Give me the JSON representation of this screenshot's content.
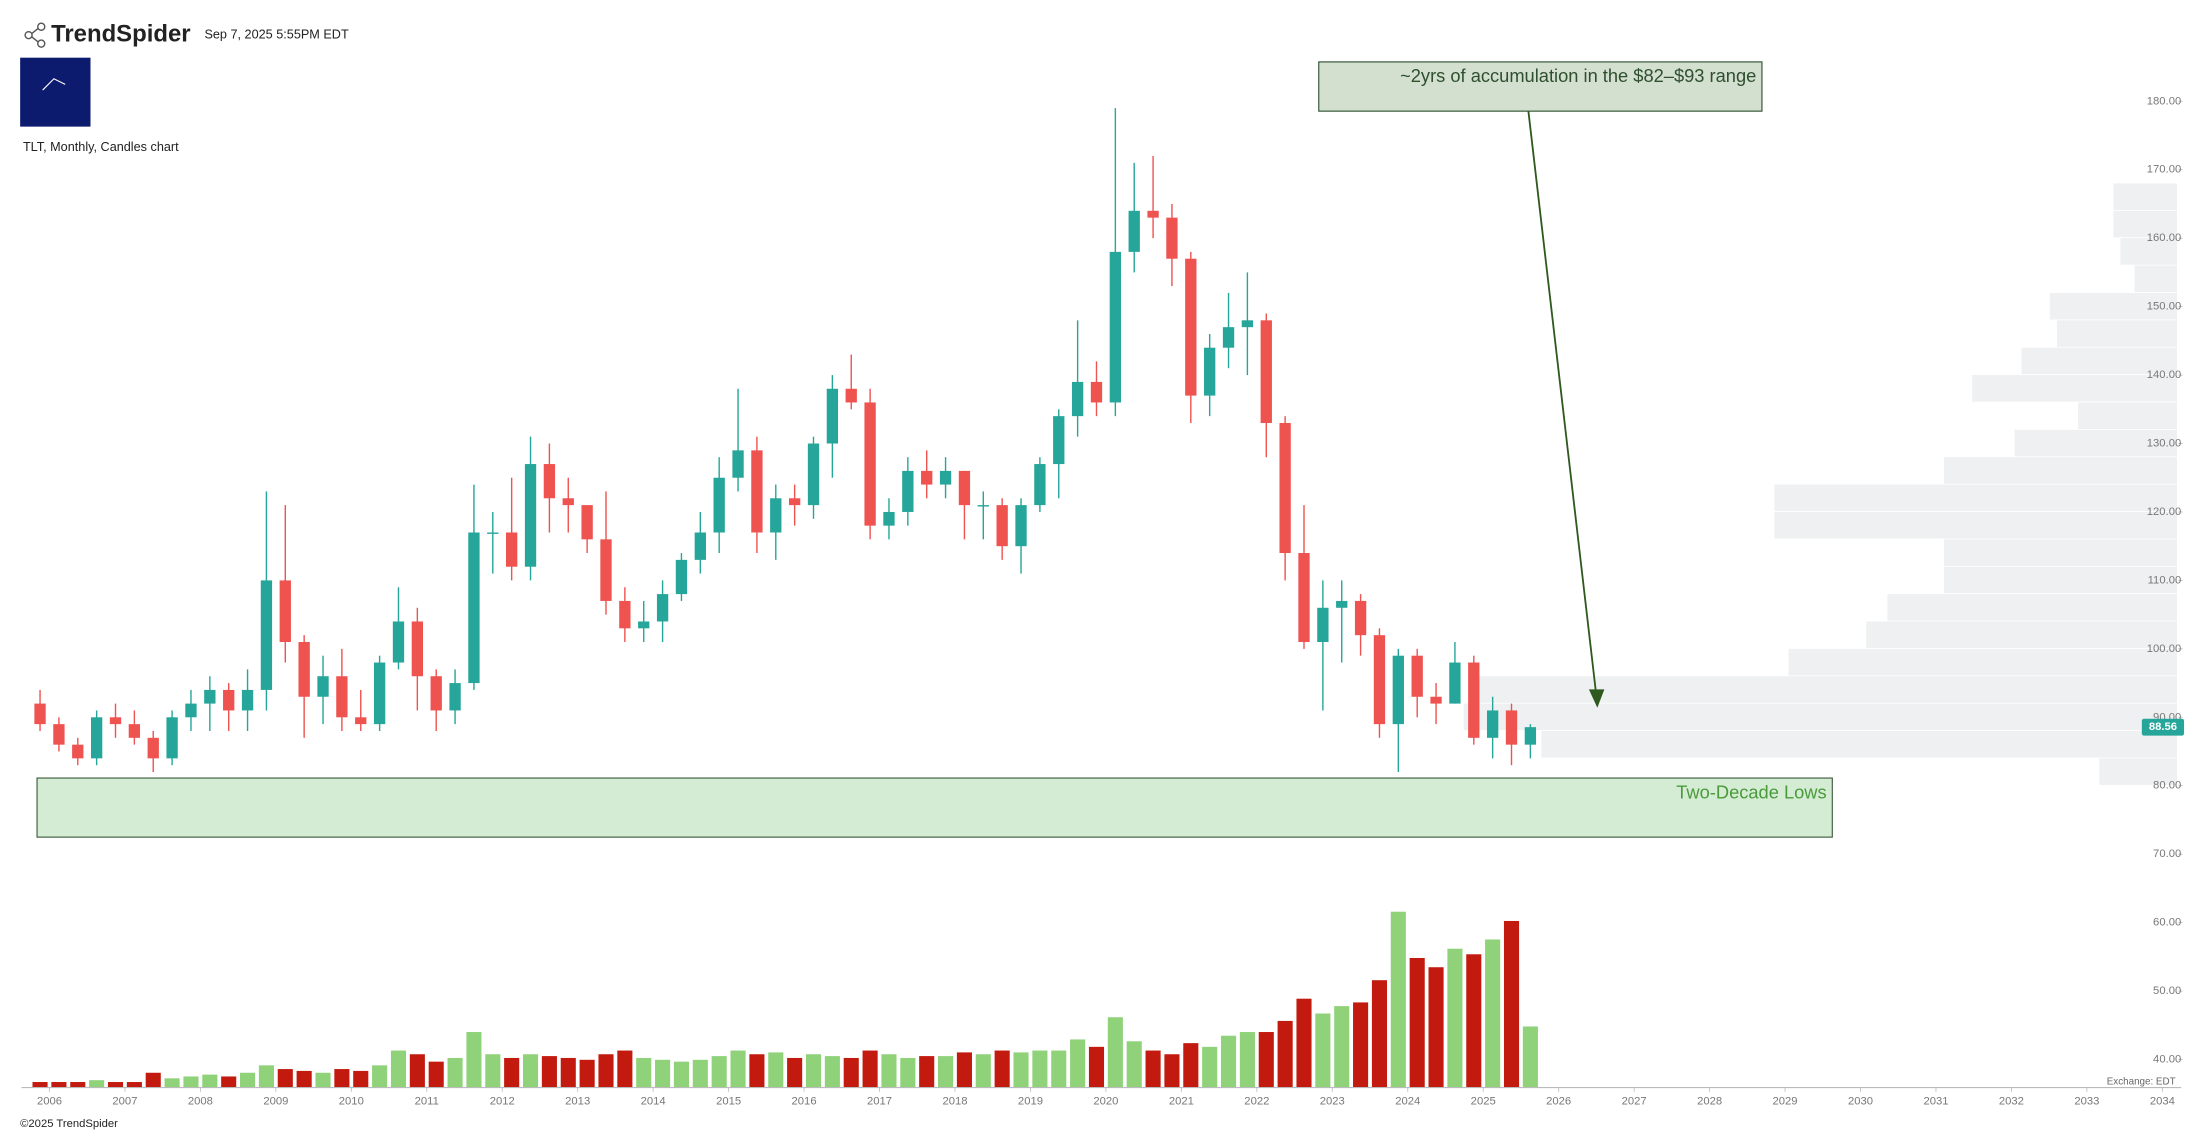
{
  "header": {
    "brand": "TrendSpider",
    "timestamp": "Sep 7, 2025 5:55PM EDT",
    "chart_label": "TLT, Monthly, Candles chart"
  },
  "footer": {
    "copyright": "©2025 TrendSpider",
    "exchange": "Exchange: EDT"
  },
  "chart_data": {
    "type": "candlestick",
    "up_color": "#26a69a",
    "down_color": "#ef5350",
    "volume_up_color": "#8fd27a",
    "volume_down_color": "#c21a0e",
    "x": [
      2005.75,
      2006,
      2006.25,
      2006.5,
      2006.75,
      2007,
      2007.25,
      2007.5,
      2007.75,
      2008,
      2008.25,
      2008.5,
      2008.75,
      2009,
      2009.25,
      2009.5,
      2009.75,
      2010,
      2010.25,
      2010.5,
      2010.75,
      2011,
      2011.25,
      2011.5,
      2011.75,
      2012,
      2012.25,
      2012.5,
      2012.75,
      2013,
      2013.25,
      2013.5,
      2013.75,
      2014,
      2014.25,
      2014.5,
      2014.75,
      2015,
      2015.25,
      2015.5,
      2015.75,
      2016,
      2016.25,
      2016.5,
      2016.75,
      2017,
      2017.25,
      2017.5,
      2017.75,
      2018,
      2018.25,
      2018.5,
      2018.75,
      2019,
      2019.25,
      2019.5,
      2019.75,
      2020,
      2020.25,
      2020.5,
      2020.75,
      2021,
      2021.25,
      2021.5,
      2021.75,
      2022,
      2022.25,
      2022.5,
      2022.75,
      2023,
      2023.25,
      2023.5,
      2023.75,
      2024,
      2024.25,
      2024.5,
      2024.75,
      2025,
      2025.25,
      2025.5
    ],
    "open": [
      92,
      89,
      86,
      84,
      90,
      89,
      87,
      84,
      90,
      92,
      94,
      91,
      94,
      110,
      101,
      93,
      96,
      90,
      89,
      98,
      104,
      96,
      91,
      95,
      117,
      117,
      112,
      127,
      122,
      121,
      116,
      107,
      103,
      104,
      108,
      113,
      117,
      125,
      129,
      117,
      122,
      121,
      130,
      138,
      136,
      118,
      120,
      126,
      124,
      126,
      121,
      121,
      115,
      121,
      127,
      134,
      139,
      136,
      158,
      164,
      163,
      157,
      137,
      144,
      147,
      148,
      133,
      114,
      101,
      106,
      107,
      102,
      89,
      99,
      93,
      92,
      98,
      87,
      91,
      86
    ],
    "high": [
      94,
      90,
      87,
      91,
      92,
      91,
      88,
      91,
      94,
      96,
      95,
      97,
      123,
      121,
      102,
      99,
      100,
      94,
      99,
      109,
      106,
      97,
      97,
      124,
      120,
      125,
      131,
      130,
      125,
      121,
      123,
      109,
      107,
      110,
      114,
      120,
      128,
      138,
      131,
      124,
      124,
      131,
      140,
      143,
      138,
      122,
      128,
      129,
      128,
      126,
      123,
      122,
      122,
      128,
      135,
      148,
      142,
      179,
      171,
      172,
      165,
      158,
      146,
      152,
      155,
      149,
      134,
      121,
      110,
      110,
      108,
      103,
      100,
      100,
      95,
      101,
      99,
      93,
      92,
      89
    ],
    "low": [
      88,
      85,
      83,
      83,
      87,
      86,
      82,
      83,
      88,
      88,
      88,
      88,
      91,
      98,
      87,
      89,
      88,
      88,
      88,
      97,
      91,
      88,
      89,
      94,
      111,
      110,
      110,
      117,
      117,
      114,
      105,
      101,
      101,
      101,
      107,
      111,
      114,
      123,
      114,
      113,
      118,
      119,
      125,
      135,
      116,
      116,
      118,
      122,
      122,
      116,
      116,
      113,
      111,
      120,
      122,
      131,
      134,
      134,
      155,
      160,
      153,
      133,
      134,
      141,
      140,
      128,
      110,
      100,
      91,
      98,
      99,
      87,
      82,
      90,
      89,
      92,
      86,
      84,
      83,
      84
    ],
    "close": [
      89,
      86,
      84,
      90,
      89,
      87,
      84,
      90,
      92,
      94,
      91,
      94,
      110,
      101,
      93,
      96,
      90,
      89,
      98,
      104,
      96,
      91,
      95,
      117,
      117,
      112,
      127,
      122,
      121,
      116,
      107,
      103,
      104,
      108,
      113,
      117,
      125,
      129,
      117,
      122,
      121,
      130,
      138,
      136,
      118,
      120,
      126,
      124,
      126,
      121,
      121,
      115,
      121,
      127,
      134,
      139,
      136,
      158,
      164,
      163,
      157,
      137,
      144,
      147,
      148,
      133,
      114,
      101,
      106,
      107,
      102,
      89,
      99,
      93,
      92,
      98,
      87,
      91,
      86,
      88.56
    ],
    "volume": [
      3,
      3,
      3,
      4,
      3,
      3,
      8,
      5,
      6,
      7,
      6,
      8,
      12,
      10,
      9,
      8,
      10,
      9,
      12,
      20,
      18,
      14,
      16,
      30,
      18,
      16,
      18,
      17,
      16,
      15,
      18,
      20,
      16,
      15,
      14,
      15,
      17,
      20,
      18,
      19,
      16,
      18,
      17,
      16,
      20,
      18,
      16,
      17,
      17,
      19,
      18,
      20,
      19,
      20,
      20,
      26,
      22,
      38,
      25,
      20,
      18,
      24,
      22,
      28,
      30,
      30,
      36,
      48,
      40,
      44,
      46,
      58,
      95,
      70,
      65,
      75,
      72,
      80,
      90,
      33
    ],
    "xlim": [
      2005.63,
      2034.25
    ],
    "xticks": [
      2006,
      2007,
      2008,
      2009,
      2010,
      2011,
      2012,
      2013,
      2014,
      2015,
      2016,
      2017,
      2018,
      2019,
      2020,
      2021,
      2022,
      2023,
      2024,
      2025,
      2026,
      2027,
      2028,
      2029,
      2030,
      2031,
      2032,
      2033,
      2034
    ],
    "ylim": [
      35.9,
      194.8
    ],
    "yticks": [
      {
        "value": 40,
        "label": "40.00"
      },
      {
        "value": 50,
        "label": "50.00"
      },
      {
        "value": 60,
        "label": "60.00"
      },
      {
        "value": 70,
        "label": "70.00"
      },
      {
        "value": 80,
        "label": "80.00"
      },
      {
        "value": 90,
        "label": "90.00"
      },
      {
        "value": 100,
        "label": "100.00"
      },
      {
        "value": 110,
        "label": "110.00"
      },
      {
        "value": 120,
        "label": "120.00"
      },
      {
        "value": 130,
        "label": "130.00"
      },
      {
        "value": 140,
        "label": "140.00"
      },
      {
        "value": 150,
        "label": "150.00"
      },
      {
        "value": 160,
        "label": "160.00"
      },
      {
        "value": 170,
        "label": "170.00"
      },
      {
        "value": 180,
        "label": "180.00"
      }
    ],
    "volume_profile": {
      "bins": [
        80,
        84,
        88,
        92,
        96,
        100,
        104,
        108,
        112,
        116,
        120,
        124,
        128,
        132,
        136,
        140,
        144,
        148,
        152,
        156,
        160,
        164,
        168
      ],
      "values": [
        11,
        90,
        101,
        100,
        55,
        44,
        41,
        33,
        33,
        57,
        57,
        33,
        23,
        14,
        29,
        22,
        17,
        18,
        6,
        8,
        9,
        9
      ]
    },
    "annotations": [
      {
        "text": "~2yrs of accumulation in the $82–$93 range"
      },
      {
        "text": "Two-Decade Lows"
      }
    ]
  }
}
